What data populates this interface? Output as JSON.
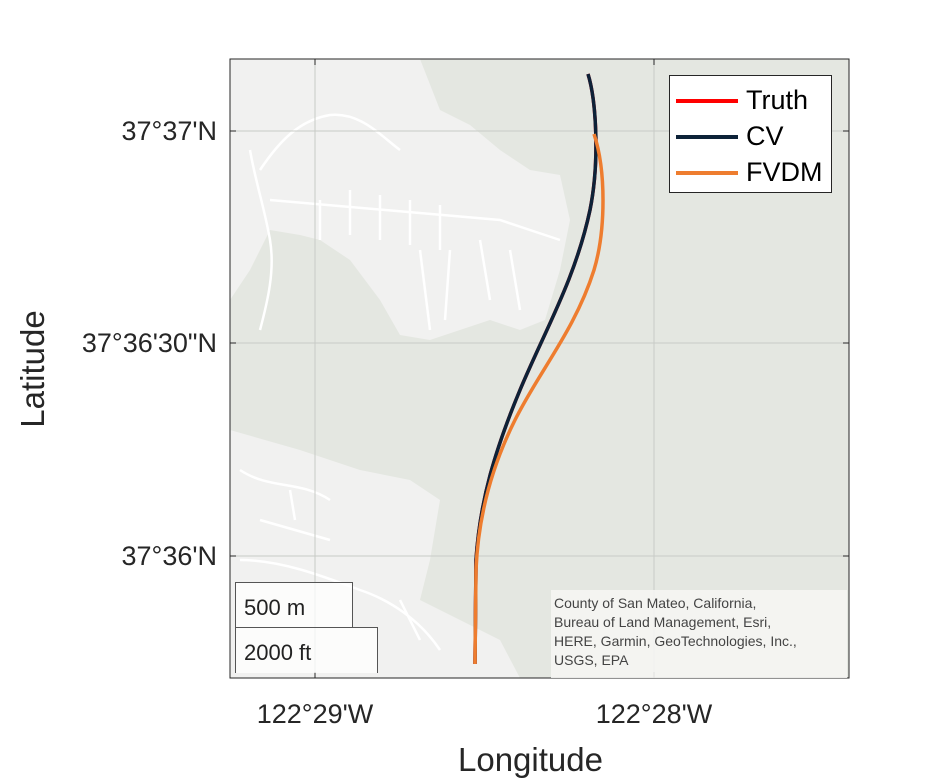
{
  "map": {
    "x_label": "Longitude",
    "y_label": "Latitude",
    "lat_ticks": [
      "37°37'N",
      "37°36'30\"N",
      "37°36'N"
    ],
    "lon_ticks": [
      "122°29'W",
      "122°28'W"
    ],
    "scale_bar": {
      "metric": "500 m",
      "imperial": "2000 ft"
    },
    "attribution": [
      "County of San Mateo, California,",
      "Bureau of Land Management, Esri,",
      "HERE, Garmin, GeoTechnologies, Inc.,",
      "USGS, EPA"
    ],
    "colors": {
      "land": "#e4e7e1",
      "urban": "#f3f3f3",
      "truth": "#ff0000",
      "cv": "#0d2238",
      "fvdm": "#ee7d2f"
    }
  },
  "legend": [
    {
      "label": "Truth",
      "color": "#ff0000"
    },
    {
      "label": "CV",
      "color": "#0d2238"
    },
    {
      "label": "FVDM",
      "color": "#ee7d2f"
    }
  ]
}
